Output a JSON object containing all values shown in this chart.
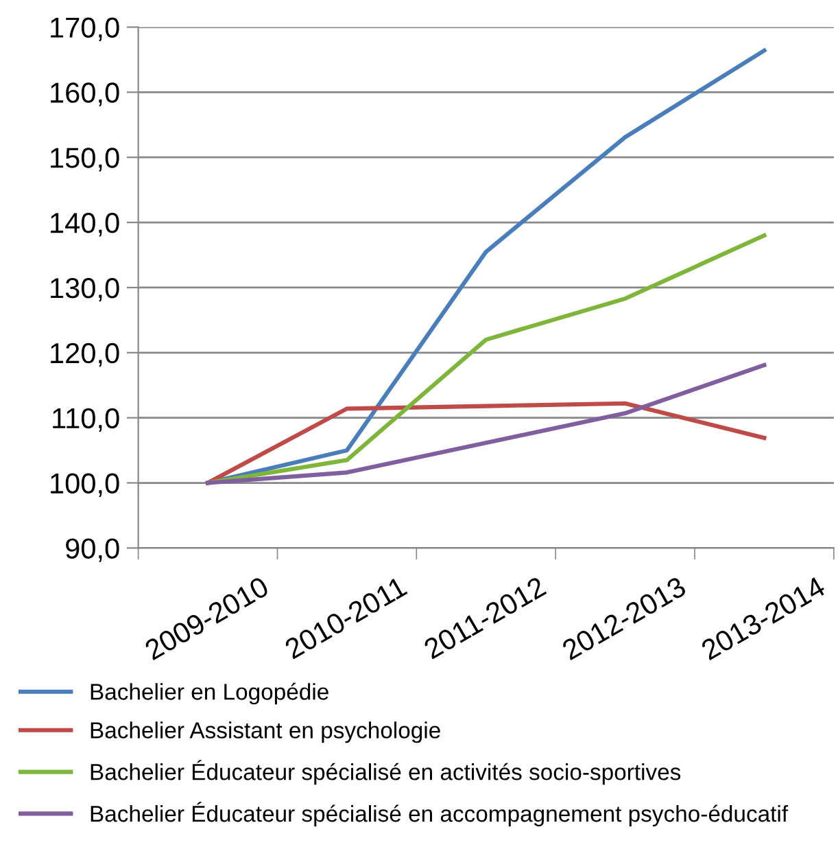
{
  "chart_data": {
    "type": "line",
    "categories": [
      "2009-2010",
      "2010-2011",
      "2011-2012",
      "2012-2013",
      "2013-2014"
    ],
    "series": [
      {
        "name": "Bachelier en Logopédie",
        "color": "#4a7ebb",
        "values": [
          100.0,
          105.0,
          135.5,
          153.1,
          166.4
        ]
      },
      {
        "name": "Bachelier Assistant en psychologie",
        "color": "#be4b48",
        "values": [
          100.0,
          111.4,
          111.8,
          112.2,
          106.9
        ]
      },
      {
        "name": "Bachelier Éducateur spécialisé en activités socio-sportives",
        "color": "#7eb53a",
        "values": [
          100.0,
          103.5,
          122.0,
          128.3,
          138.0
        ]
      },
      {
        "name": "Bachelier Éducateur spécialisé en accompagnement psycho-éducatif",
        "color": "#7f5f9e",
        "values": [
          100.0,
          101.6,
          null,
          110.7,
          118.1
        ]
      }
    ],
    "ylim": [
      90,
      170
    ],
    "yticks": [
      {
        "value": 90,
        "label": "90,0"
      },
      {
        "value": 100,
        "label": "100,0"
      },
      {
        "value": 110,
        "label": "110,0"
      },
      {
        "value": 120,
        "label": "120,0"
      },
      {
        "value": 130,
        "label": "130,0"
      },
      {
        "value": 140,
        "label": "140,0"
      },
      {
        "value": 150,
        "label": "150,0"
      },
      {
        "value": 160,
        "label": "160,0"
      },
      {
        "value": 170,
        "label": "170,0"
      }
    ],
    "grid": "y",
    "legend": "bottom",
    "marker": "none",
    "line_style": "solid"
  }
}
